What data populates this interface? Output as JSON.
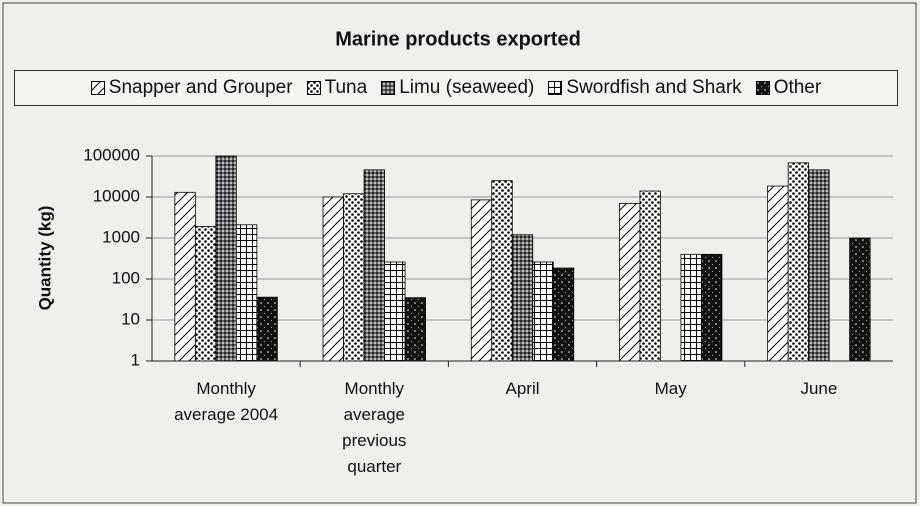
{
  "chart_data": {
    "type": "bar",
    "title": "Marine products exported",
    "y_label": "Quantity (kg)",
    "categories": [
      "Monthly average 2004",
      "Monthly average previous quarter",
      "April",
      "May",
      "June"
    ],
    "series": [
      {
        "name": "Snapper and Grouper",
        "pattern": "diagonal",
        "color": "#000000",
        "values": [
          13000,
          10000,
          8500,
          7000,
          18500
        ]
      },
      {
        "name": "Tuna",
        "pattern": "dots",
        "color": "#000000",
        "values": [
          1900,
          12000,
          25000,
          14000,
          68000
        ]
      },
      {
        "name": "Limu (seaweed)",
        "pattern": "dense",
        "color": "#000000",
        "values": [
          100000,
          46000,
          1200,
          null,
          46000
        ]
      },
      {
        "name": "Swordfish and Shark",
        "pattern": "grid",
        "color": "#000000",
        "values": [
          2100,
          260,
          260,
          400,
          null
        ]
      },
      {
        "name": "Other",
        "pattern": "solid-dots",
        "color": "#000000",
        "values": [
          36,
          35,
          185,
          400,
          1000
        ]
      }
    ],
    "log_scale": true,
    "ylim": [
      1,
      100000
    ],
    "yticks": [
      1,
      10,
      100,
      1000,
      10000,
      100000
    ],
    "grid": true
  }
}
